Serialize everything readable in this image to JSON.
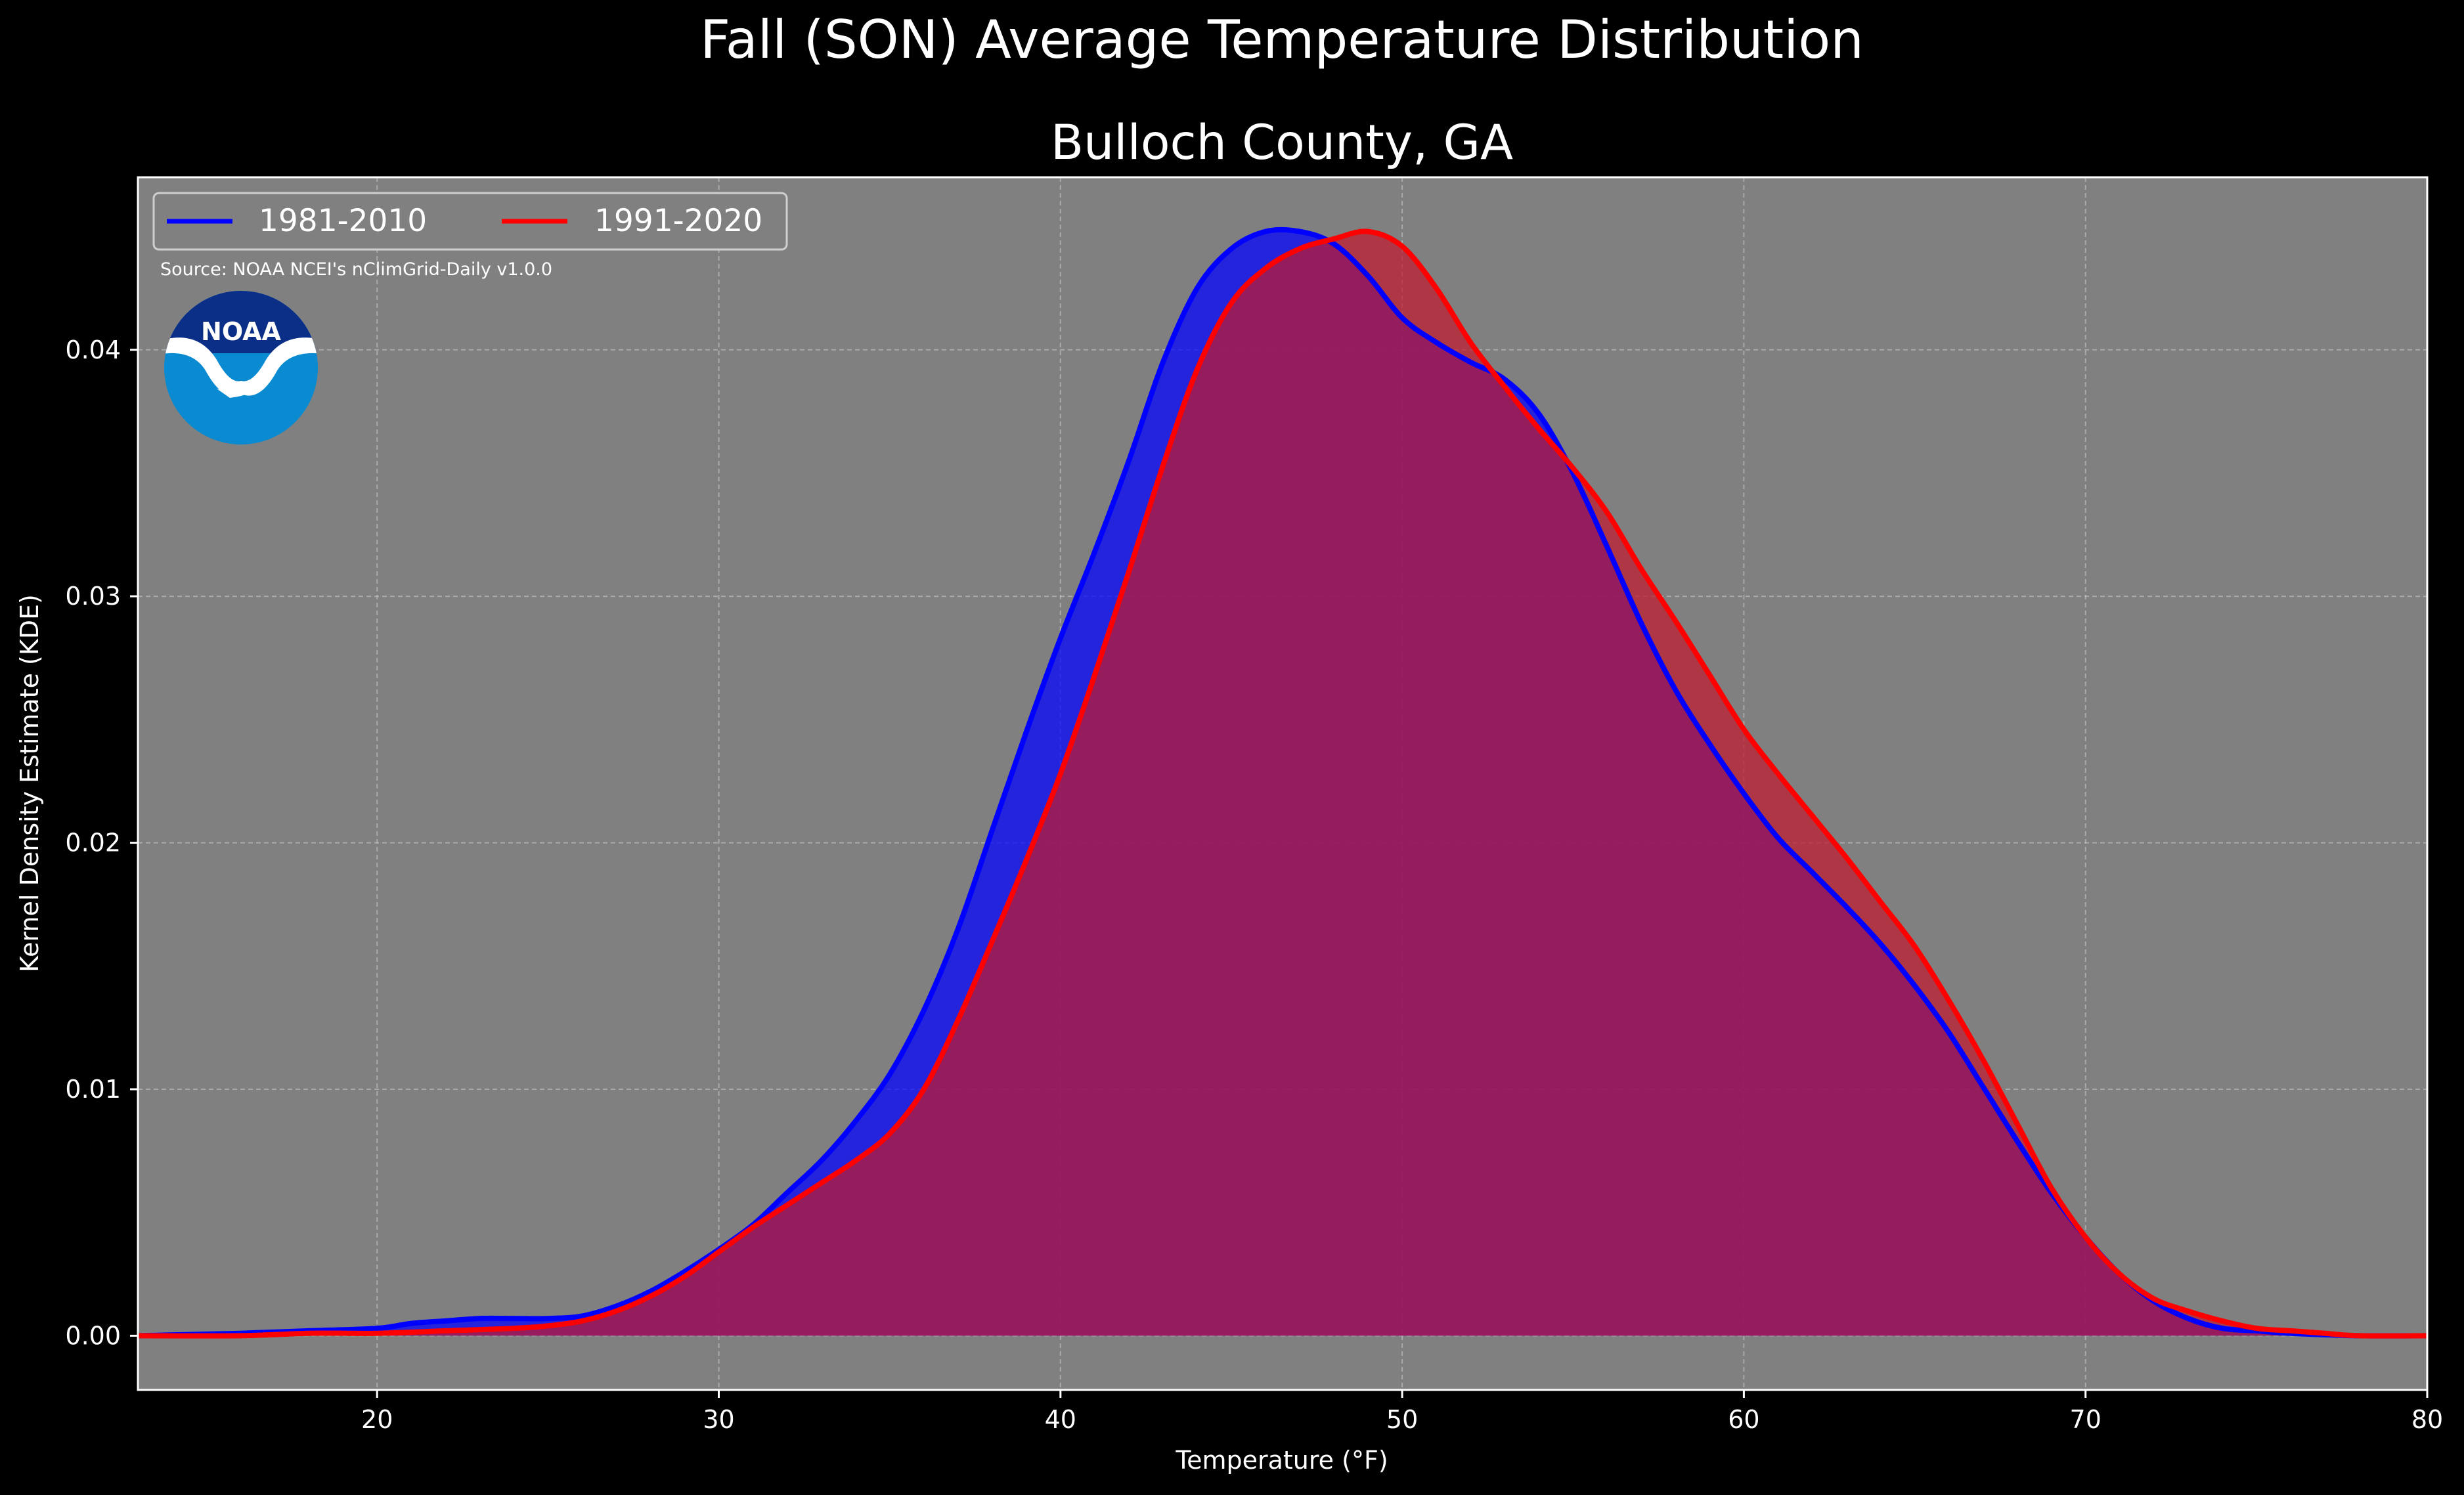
{
  "chart_data": {
    "type": "area",
    "suptitle": "Fall (SON) Average Temperature Distribution",
    "title": "Bulloch County, GA",
    "xlabel": "Temperature ($^\\circ$F)",
    "xlabel_display": "Temperature (°F)",
    "ylabel": "Kernel Density Estimate (KDE)",
    "xlim": [
      13,
      80
    ],
    "ylim": [
      -0.0022,
      0.047
    ],
    "xticks": [
      20,
      30,
      40,
      50,
      60,
      70,
      80
    ],
    "xtick_labels": [
      "20",
      "30",
      "40",
      "50",
      "60",
      "70",
      "80"
    ],
    "yticks": [
      0.0,
      0.01,
      0.02,
      0.03,
      0.04
    ],
    "ytick_labels": [
      "0.00",
      "0.01",
      "0.02",
      "0.03",
      "0.04"
    ],
    "grid": true,
    "legend_position": "top-left",
    "source_text": "Source: NOAA NCEI's nClimGrid-Daily v1.0.0",
    "logo_text": "NOAA",
    "series": [
      {
        "name": "1981-2010",
        "color": "#0000ff",
        "fill": "#0000ff",
        "x": [
          13,
          16,
          18,
          20,
          21,
          22,
          23,
          24,
          25,
          26,
          27,
          28,
          29,
          30,
          31,
          32,
          33,
          34,
          35,
          36,
          37,
          38,
          39,
          40,
          41,
          42,
          43,
          44,
          45,
          46,
          47,
          48,
          49,
          50,
          51,
          52,
          53,
          54,
          55,
          56,
          57,
          58,
          59,
          60,
          61,
          62,
          63,
          64,
          65,
          66,
          67,
          68,
          69,
          70,
          71,
          72,
          73,
          74,
          75,
          76,
          78,
          80
        ],
        "y": [
          0.0,
          0.0001,
          0.0002,
          0.0003,
          0.0005,
          0.0006,
          0.0007,
          0.0007,
          0.0007,
          0.0008,
          0.0012,
          0.0018,
          0.0026,
          0.0035,
          0.0045,
          0.0058,
          0.0071,
          0.0087,
          0.0106,
          0.0132,
          0.0165,
          0.0205,
          0.0245,
          0.0283,
          0.0318,
          0.0355,
          0.0395,
          0.0425,
          0.0441,
          0.0448,
          0.0448,
          0.0443,
          0.043,
          0.0413,
          0.0403,
          0.0395,
          0.0388,
          0.0374,
          0.035,
          0.032,
          0.0289,
          0.0262,
          0.024,
          0.022,
          0.0202,
          0.0188,
          0.0174,
          0.0159,
          0.0142,
          0.0123,
          0.0101,
          0.0079,
          0.0058,
          0.004,
          0.0025,
          0.0014,
          0.0007,
          0.0003,
          0.0002,
          0.0001,
          0.0,
          0.0
        ]
      },
      {
        "name": "1991-2020",
        "color": "#ff0000",
        "fill": "#c0192c",
        "x": [
          13,
          16,
          18,
          20,
          22,
          24,
          25,
          26,
          27,
          28,
          29,
          30,
          31,
          32,
          33,
          34,
          35,
          36,
          37,
          38,
          39,
          40,
          41,
          42,
          43,
          44,
          45,
          46,
          47,
          48,
          49,
          50,
          51,
          52,
          53,
          54,
          55,
          56,
          57,
          58,
          59,
          60,
          61,
          62,
          63,
          64,
          65,
          66,
          67,
          68,
          69,
          70,
          71,
          72,
          73,
          74,
          75,
          76,
          77,
          78,
          80
        ],
        "y": [
          0.0,
          0.0,
          0.0001,
          0.0001,
          0.0002,
          0.0003,
          0.0004,
          0.0006,
          0.001,
          0.0016,
          0.0024,
          0.0034,
          0.0044,
          0.0053,
          0.0062,
          0.0071,
          0.0082,
          0.01,
          0.0128,
          0.016,
          0.0193,
          0.0228,
          0.0268,
          0.031,
          0.0353,
          0.0392,
          0.0419,
          0.0433,
          0.0441,
          0.0445,
          0.0448,
          0.0442,
          0.0425,
          0.0403,
          0.0385,
          0.0368,
          0.0352,
          0.0334,
          0.0311,
          0.029,
          0.0268,
          0.0246,
          0.0228,
          0.0211,
          0.0194,
          0.0176,
          0.0158,
          0.0136,
          0.0112,
          0.0086,
          0.006,
          0.004,
          0.0025,
          0.0015,
          0.001,
          0.0006,
          0.0003,
          0.0002,
          0.0001,
          0.0,
          0.0
        ]
      }
    ]
  }
}
